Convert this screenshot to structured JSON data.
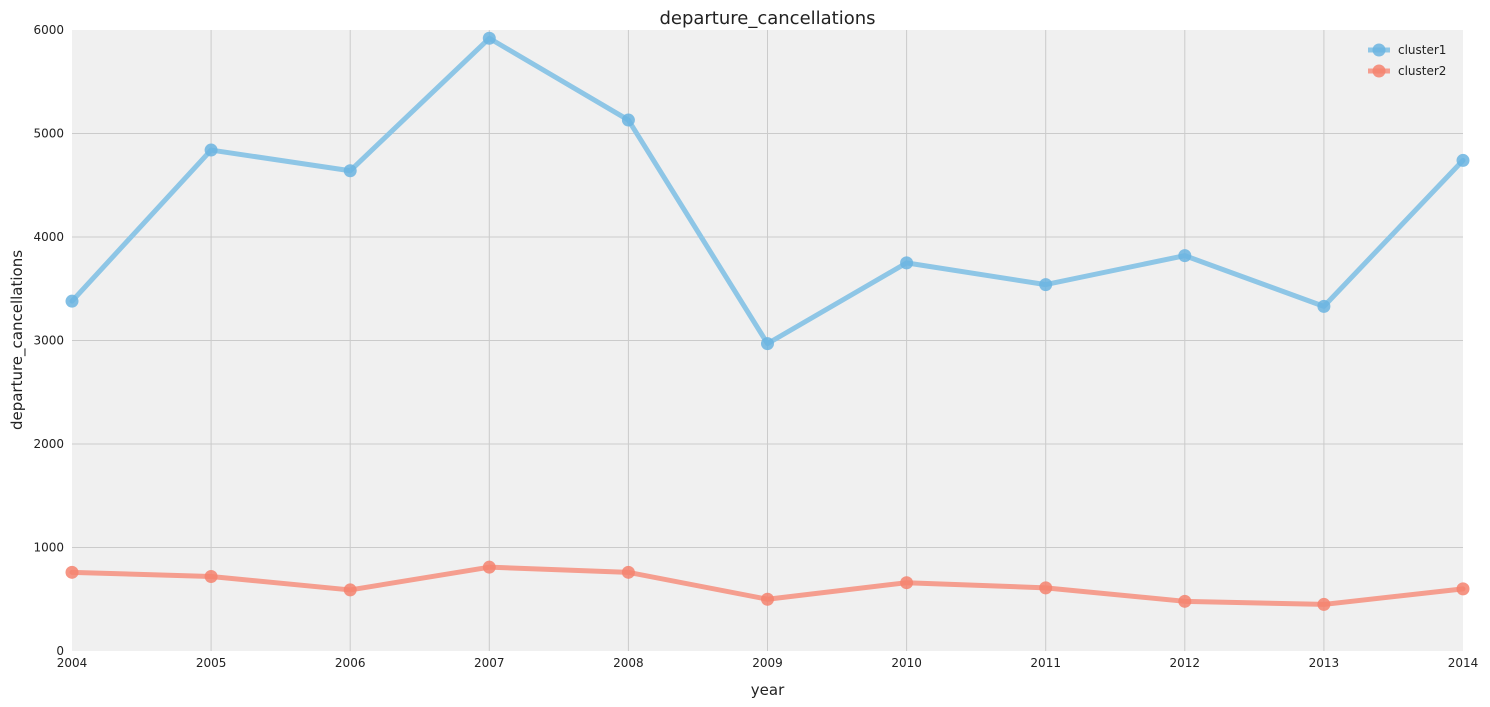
{
  "chart_data": {
    "type": "line",
    "title": "departure_cancellations",
    "xlabel": "year",
    "ylabel": "departure_cancellations",
    "x": [
      2004,
      2005,
      2006,
      2007,
      2008,
      2009,
      2010,
      2011,
      2012,
      2013,
      2014
    ],
    "xlim": [
      2004,
      2014
    ],
    "ylim": [
      0,
      6000
    ],
    "yticks": [
      0,
      1000,
      2000,
      3000,
      4000,
      5000,
      6000
    ],
    "grid": true,
    "legend_position": "top-right",
    "series": [
      {
        "name": "cluster1",
        "color": "#8ec6e6",
        "marker_color": "#6bb4e0",
        "values": [
          3380,
          4840,
          4640,
          5920,
          5130,
          2970,
          3750,
          3540,
          3820,
          3330,
          4740
        ]
      },
      {
        "name": "cluster2",
        "color": "#f59e8f",
        "marker_color": "#f4836f",
        "values": [
          760,
          720,
          590,
          810,
          760,
          500,
          660,
          610,
          480,
          450,
          600
        ]
      }
    ]
  }
}
